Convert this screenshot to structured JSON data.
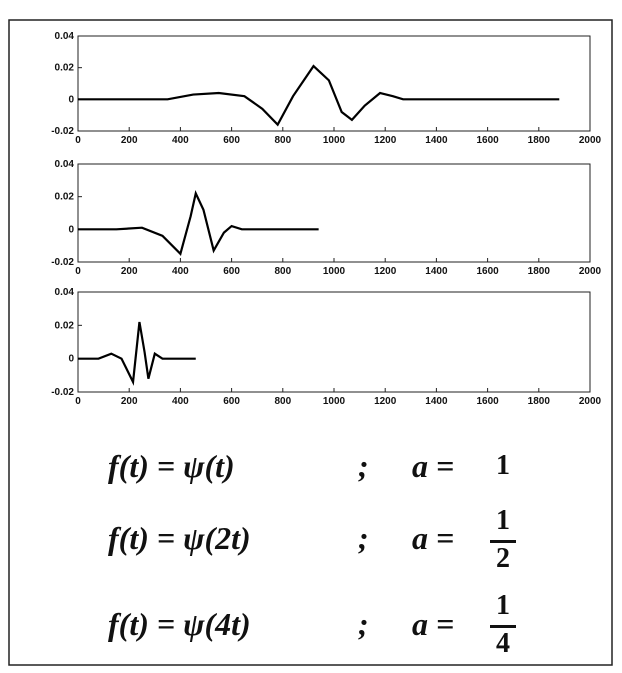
{
  "chart_data": [
    {
      "type": "line",
      "x": [
        0,
        200,
        350,
        450,
        550,
        650,
        720,
        780,
        840,
        920,
        980,
        1030,
        1070,
        1120,
        1180,
        1230,
        1270,
        1500,
        1880
      ],
      "values": [
        0,
        0,
        0,
        0.003,
        0.004,
        0.002,
        -0.006,
        -0.016,
        0.002,
        0.021,
        0.012,
        -0.008,
        -0.013,
        -0.004,
        0.004,
        0.002,
        0,
        0,
        0
      ],
      "color": "#000000",
      "xlim": [
        0,
        2000
      ],
      "xticks": [
        0,
        200,
        400,
        600,
        800,
        1000,
        1200,
        1400,
        1600,
        1800,
        2000
      ],
      "ylim": [
        -0.02,
        0.04
      ],
      "yticks": [
        -0.02,
        0,
        0.02,
        0.04
      ]
    },
    {
      "type": "line",
      "x": [
        0,
        150,
        250,
        330,
        400,
        440,
        460,
        490,
        530,
        570,
        600,
        640,
        940
      ],
      "values": [
        0,
        0,
        0.001,
        -0.004,
        -0.015,
        0.008,
        0.022,
        0.012,
        -0.013,
        -0.002,
        0.002,
        0,
        0
      ],
      "color": "#000000",
      "xlim": [
        0,
        2000
      ],
      "xticks": [
        0,
        200,
        400,
        600,
        800,
        1000,
        1200,
        1400,
        1600,
        1800,
        2000
      ],
      "ylim": [
        -0.02,
        0.04
      ],
      "yticks": [
        -0.02,
        0,
        0.02,
        0.04
      ]
    },
    {
      "type": "line",
      "x": [
        0,
        80,
        130,
        170,
        215,
        240,
        260,
        275,
        300,
        330,
        460
      ],
      "values": [
        0,
        0,
        0.003,
        0,
        -0.014,
        0.022,
        0.004,
        -0.012,
        0.003,
        0,
        0
      ],
      "color": "#000000",
      "xlim": [
        0,
        2000
      ],
      "xticks": [
        0,
        200,
        400,
        600,
        800,
        1000,
        1200,
        1400,
        1600,
        1800,
        2000
      ],
      "ylim": [
        -0.02,
        0.04
      ],
      "yticks": [
        -0.02,
        0,
        0.02,
        0.04
      ]
    }
  ],
  "equations": [
    {
      "lhs": "f(t) = ψ(t)",
      "sep": ";",
      "a": "a =",
      "value": "1"
    },
    {
      "lhs": "f(t) = ψ(2t)",
      "sep": ";",
      "a": "a =",
      "numerator": "1",
      "denominator": "2"
    },
    {
      "lhs": "f(t) = ψ(4t)",
      "sep": ";",
      "a": "a =",
      "numerator": "1",
      "denominator": "4"
    }
  ]
}
